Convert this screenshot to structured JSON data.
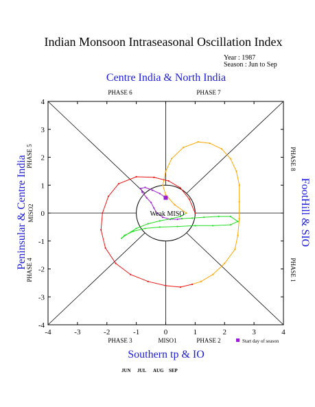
{
  "chart_data": {
    "type": "line",
    "title": "Indian Monsoon Intraseasonal Oscillation Index",
    "info": {
      "year": "Year : 1987",
      "season": "Season : Jun to Sep"
    },
    "region_labels": {
      "top": "Centre India & North India",
      "bottom": "Southern tp & IO",
      "left": "Peninsular & Centre India",
      "right": "FootHill & SIO"
    },
    "phase_labels": {
      "p1": "PHASE 1",
      "p2": "PHASE 2",
      "p3": "PHASE 3",
      "p4": "PHASE 4",
      "p5": "PHASE 5",
      "p6": "PHASE 6",
      "p7": "PHASE 7",
      "p8": "PHASE 8"
    },
    "xlabel": "MISO1",
    "ylabel": "MISO2",
    "weak_label": "Weak MISO",
    "weak_radius": 1,
    "xlim": [
      -4,
      4
    ],
    "ylim": [
      -4,
      4
    ],
    "xticks": [
      "-4",
      "-3",
      "-2",
      "-1",
      "0",
      "1",
      "2",
      "3",
      "4"
    ],
    "yticks": [
      "-4",
      "-3",
      "-2",
      "-1",
      "0",
      "1",
      "2",
      "3",
      "4"
    ],
    "start_legend": "Start day of season",
    "start_point": [
      0.0,
      0.55
    ],
    "start_color": "#9a1ad6",
    "series": [
      {
        "name": "JUN",
        "color": "#9a1ad6",
        "points": [
          [
            0.0,
            0.55
          ],
          [
            -0.2,
            0.7
          ],
          [
            -0.45,
            0.82
          ],
          [
            -0.7,
            0.92
          ],
          [
            -0.85,
            0.88
          ],
          [
            -0.8,
            0.75
          ],
          [
            -0.65,
            0.55
          ],
          [
            -0.5,
            0.38
          ],
          [
            -0.4,
            0.18
          ],
          [
            -0.3,
            0.0
          ],
          [
            -0.1,
            -0.15
          ],
          [
            0.15,
            -0.22
          ],
          [
            0.4,
            -0.22
          ],
          [
            0.55,
            -0.2
          ]
        ]
      },
      {
        "name": "JUL",
        "color": "#22dd22",
        "points": [
          [
            0.55,
            -0.2
          ],
          [
            0.9,
            -0.18
          ],
          [
            1.3,
            -0.15
          ],
          [
            1.8,
            -0.12
          ],
          [
            2.2,
            -0.12
          ],
          [
            2.45,
            -0.3
          ],
          [
            2.2,
            -0.42
          ],
          [
            1.6,
            -0.45
          ],
          [
            1.0,
            -0.45
          ],
          [
            0.4,
            -0.48
          ],
          [
            -0.2,
            -0.5
          ],
          [
            -0.7,
            -0.55
          ],
          [
            -1.1,
            -0.65
          ],
          [
            -1.4,
            -0.8
          ],
          [
            -1.5,
            -0.9
          ],
          [
            -1.35,
            -0.78
          ],
          [
            -1.0,
            -0.55
          ],
          [
            -0.6,
            -0.38
          ],
          [
            -0.2,
            -0.28
          ],
          [
            0.2,
            -0.2
          ],
          [
            0.5,
            -0.12
          ],
          [
            0.7,
            0.0
          ]
        ]
      },
      {
        "name": "AUG",
        "color": "#ffa500",
        "points": [
          [
            0.7,
            0.0
          ],
          [
            0.3,
            0.3
          ],
          [
            0.0,
            0.65
          ],
          [
            -0.1,
            1.0
          ],
          [
            0.0,
            1.5
          ],
          [
            0.2,
            1.95
          ],
          [
            0.6,
            2.35
          ],
          [
            1.1,
            2.55
          ],
          [
            1.5,
            2.5
          ],
          [
            1.9,
            2.3
          ],
          [
            2.2,
            1.95
          ],
          [
            2.4,
            1.5
          ],
          [
            2.5,
            1.0
          ],
          [
            2.5,
            0.4
          ],
          [
            2.5,
            -0.2
          ],
          [
            2.45,
            -0.8
          ],
          [
            2.35,
            -1.3
          ],
          [
            2.0,
            -1.8
          ],
          [
            1.6,
            -2.2
          ],
          [
            1.2,
            -2.45
          ],
          [
            0.9,
            -2.55
          ]
        ]
      },
      {
        "name": "SEP",
        "color": "#ee1111",
        "points": [
          [
            0.9,
            -2.55
          ],
          [
            0.5,
            -2.65
          ],
          [
            0.0,
            -2.6
          ],
          [
            -0.6,
            -2.45
          ],
          [
            -1.2,
            -2.2
          ],
          [
            -1.7,
            -1.8
          ],
          [
            -2.05,
            -1.25
          ],
          [
            -2.2,
            -0.6
          ],
          [
            -2.15,
            0.0
          ],
          [
            -1.95,
            0.6
          ],
          [
            -1.6,
            1.05
          ],
          [
            -1.0,
            1.3
          ],
          [
            -0.4,
            1.28
          ],
          [
            0.1,
            1.15
          ],
          [
            0.5,
            0.9
          ],
          [
            0.8,
            0.5
          ],
          [
            1.0,
            0.0
          ]
        ]
      }
    ]
  }
}
